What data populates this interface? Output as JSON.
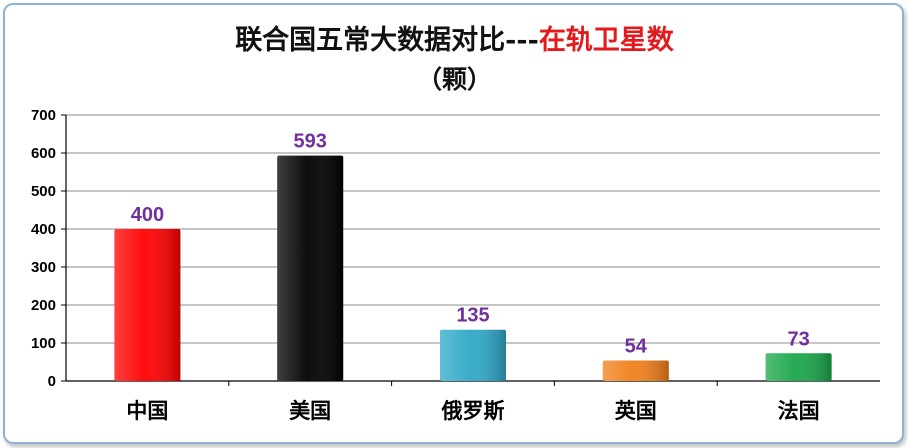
{
  "chart_data": {
    "type": "bar",
    "title": "联合国五常大数据对比---",
    "title_highlight": "在轨卫星数",
    "title_highlight_color": "#e31a1c",
    "subtitle": "（颗）",
    "categories": [
      "中国",
      "美国",
      "俄罗斯",
      "英国",
      "法国"
    ],
    "values": [
      400,
      593,
      135,
      54,
      73
    ],
    "data_labels": [
      "400",
      "593",
      "135",
      "54",
      "73"
    ],
    "colors": [
      "#ff0000",
      "#000000",
      "#2fa8c8",
      "#f07f1a",
      "#1aa64a"
    ],
    "ylim": [
      0,
      700
    ],
    "yticks": [
      0,
      100,
      200,
      300,
      400,
      500,
      600,
      700
    ],
    "grid": true,
    "legend": "none",
    "label_color": "#7030a0"
  }
}
